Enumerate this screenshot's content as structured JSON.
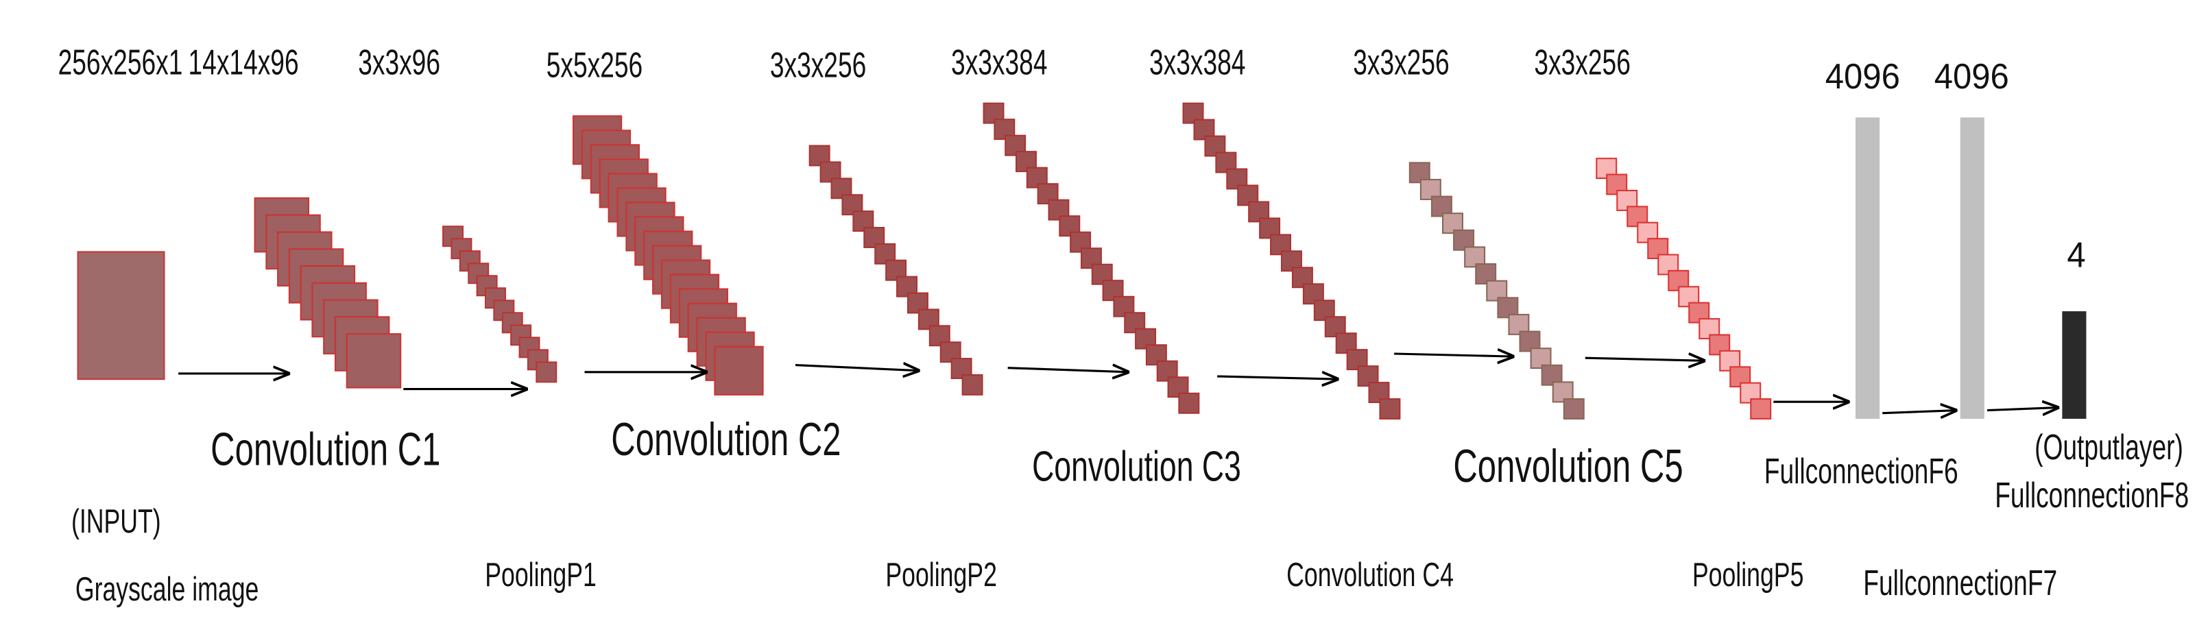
{
  "top_labels": [
    "256x256x1",
    "14x14x96",
    "3x3x96",
    "5x5x256",
    "3x3x256",
    "3x3x384",
    "3x3x384",
    "3x3x256",
    "3x3x256",
    "4096",
    "4096",
    "4"
  ],
  "bottom_labels": [
    "(INPUT)",
    "Grayscale image",
    "Convolution C1",
    "PoolingP1",
    "Convolution C2",
    "PoolingP2",
    "Convolution C3",
    "Convolution C4",
    "Convolution C5",
    "PoolingP5",
    "FullconnectionF6",
    "FullconnectionF7",
    "(Outputlayer)",
    "FullconnectionF8"
  ]
}
